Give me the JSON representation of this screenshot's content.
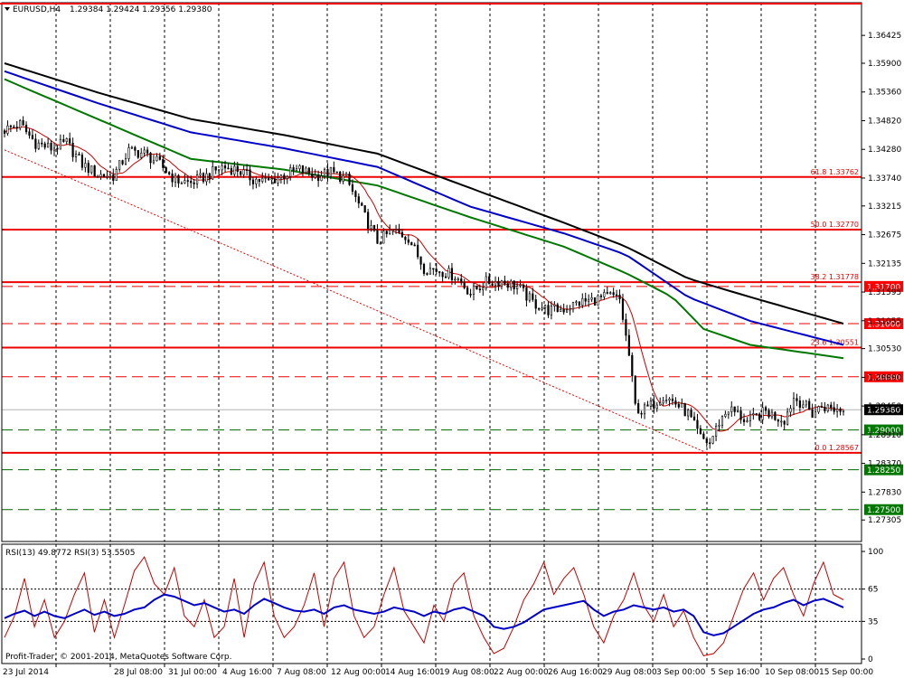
{
  "header": {
    "symbol": "EURUSD,H4",
    "ohlc": "1.29384 1.29424 1.29356 1.29380"
  },
  "colors": {
    "bull": "#000000",
    "bear": "#000000",
    "ma_fast": "#c80000",
    "ma_green": "#007800",
    "ma_blue": "#0000c8",
    "ma_black": "#000000",
    "red_level": "#ee0000",
    "green_level": "#006400",
    "rsi13": "#0000c8",
    "rsi3": "#c80000",
    "label_red_bg": "#ff0000",
    "label_green_bg": "#007800",
    "label_price_bg": "#000000"
  },
  "chart_data": [
    {
      "type": "candlestick",
      "name": "EURUSD,H4",
      "ylim": [
        1.269,
        1.3704
      ],
      "y_ticks": [
        "1.36425",
        "1.35900",
        "1.35360",
        "1.34820",
        "1.34280",
        "1.33740",
        "1.33215",
        "1.32675",
        "1.32135",
        "1.31595",
        "1.31055",
        "1.30530",
        "1.29990",
        "1.29450",
        "1.28910",
        "1.28370",
        "1.27830",
        "1.27305"
      ],
      "x_ticks": [
        "23 Jul 2014",
        "28 Jul 08:00",
        "31 Jul 00:00",
        "4 Aug 16:00",
        "7 Aug 08:00",
        "12 Aug 00:00",
        "14 Aug 16:00",
        "19 Aug 08:00",
        "22 Aug 00:00",
        "26 Aug 16:00",
        "29 Aug 08:00",
        "3 Sep 00:00",
        "5 Sep 16:00",
        "10 Sep 08:00",
        "15 Sep 00:00"
      ],
      "close_anchors": [
        [
          0,
          1.3465
        ],
        [
          5,
          1.3475
        ],
        [
          10,
          1.344
        ],
        [
          15,
          1.343
        ],
        [
          20,
          1.344
        ],
        [
          25,
          1.34
        ],
        [
          30,
          1.338
        ],
        [
          35,
          1.3378
        ],
        [
          40,
          1.3425
        ],
        [
          45,
          1.342
        ],
        [
          50,
          1.34
        ],
        [
          55,
          1.337
        ],
        [
          60,
          1.3365
        ],
        [
          65,
          1.3378
        ],
        [
          70,
          1.3395
        ],
        [
          75,
          1.339
        ],
        [
          80,
          1.3372
        ],
        [
          85,
          1.3368
        ],
        [
          90,
          1.338
        ],
        [
          95,
          1.339
        ],
        [
          100,
          1.3378
        ],
        [
          105,
          1.3385
        ],
        [
          110,
          1.3372
        ],
        [
          115,
          1.3312
        ],
        [
          120,
          1.3255
        ],
        [
          125,
          1.3275
        ],
        [
          130,
          1.3262
        ],
        [
          135,
          1.3205
        ],
        [
          140,
          1.32
        ],
        [
          145,
          1.319
        ],
        [
          150,
          1.3158
        ],
        [
          155,
          1.3178
        ],
        [
          160,
          1.318
        ],
        [
          165,
          1.317
        ],
        [
          170,
          1.314
        ],
        [
          175,
          1.3125
        ],
        [
          180,
          1.3128
        ],
        [
          185,
          1.314
        ],
        [
          190,
          1.3145
        ],
        [
          195,
          1.3152
        ],
        [
          198,
          1.3145
        ],
        [
          201,
          1.304
        ],
        [
          203,
          1.2945
        ],
        [
          205,
          1.2935
        ],
        [
          208,
          1.2945
        ],
        [
          212,
          1.2965
        ],
        [
          216,
          1.295
        ],
        [
          220,
          1.293
        ],
        [
          224,
          1.2885
        ],
        [
          227,
          1.2875
        ],
        [
          230,
          1.2915
        ],
        [
          233,
          1.294
        ],
        [
          236,
          1.293
        ],
        [
          239,
          1.2915
        ],
        [
          242,
          1.2925
        ],
        [
          245,
          1.2935
        ],
        [
          248,
          1.2925
        ],
        [
          251,
          1.292
        ],
        [
          254,
          1.296
        ],
        [
          257,
          1.295
        ],
        [
          260,
          1.293
        ],
        [
          263,
          1.2945
        ],
        [
          266,
          1.294
        ],
        [
          270,
          1.2938
        ]
      ],
      "moving_averages": [
        {
          "color_key": "ma_black",
          "points": [
            [
              0,
              1.359
            ],
            [
              30,
              1.3535
            ],
            [
              60,
              1.3485
            ],
            [
              90,
              1.3455
            ],
            [
              120,
              1.342
            ],
            [
              150,
              1.3355
            ],
            [
              180,
              1.329
            ],
            [
              200,
              1.3245
            ],
            [
              220,
              1.3185
            ],
            [
              240,
              1.315
            ],
            [
              270,
              1.31
            ]
          ]
        },
        {
          "color_key": "ma_blue",
          "points": [
            [
              0,
              1.3575
            ],
            [
              30,
              1.3515
            ],
            [
              60,
              1.346
            ],
            [
              90,
              1.343
            ],
            [
              120,
              1.3395
            ],
            [
              150,
              1.332
            ],
            [
              180,
              1.327
            ],
            [
              200,
              1.323
            ],
            [
              220,
              1.315
            ],
            [
              240,
              1.3105
            ],
            [
              270,
              1.306
            ]
          ]
        },
        {
          "color_key": "ma_green",
          "points": [
            [
              0,
              1.356
            ],
            [
              30,
              1.3485
            ],
            [
              60,
              1.341
            ],
            [
              90,
              1.339
            ],
            [
              120,
              1.336
            ],
            [
              150,
              1.33
            ],
            [
              180,
              1.3245
            ],
            [
              200,
              1.3195
            ],
            [
              215,
              1.315
            ],
            [
              225,
              1.309
            ],
            [
              240,
              1.306
            ],
            [
              270,
              1.3035
            ]
          ]
        }
      ],
      "levels": [
        {
          "price": 1.3376,
          "style": "solid",
          "color_key": "red_level",
          "label": "61.8  1.33762"
        },
        {
          "price": 1.3277,
          "style": "solid",
          "color_key": "red_level",
          "label": "50.0  1.32770"
        },
        {
          "price": 1.3178,
          "style": "solid",
          "color_key": "red_level",
          "label": "38.2  1.31778"
        },
        {
          "price": 1.317,
          "style": "dash",
          "color_key": "red_level",
          "tag": "1.31700"
        },
        {
          "price": 1.31,
          "style": "dash",
          "color_key": "red_level",
          "tag": "1.31000"
        },
        {
          "price": 1.3055,
          "style": "solid",
          "color_key": "red_level",
          "label": "23.6  1.30551"
        },
        {
          "price": 1.3,
          "style": "dash",
          "color_key": "red_level",
          "tag": "1.30000"
        },
        {
          "price": 1.29,
          "style": "dash",
          "color_key": "green_level",
          "tag": "1.29000"
        },
        {
          "price": 1.2857,
          "style": "solid",
          "color_key": "red_level",
          "label": "0.0  1.28567"
        },
        {
          "price": 1.2825,
          "style": "dash",
          "color_key": "green_level",
          "tag": "1.28250"
        },
        {
          "price": 1.275,
          "style": "dash",
          "color_key": "green_level",
          "tag": "1.27500"
        }
      ],
      "trendline": {
        "from": [
          0,
          1.3427
        ],
        "to": [
          226,
          1.2857
        ]
      },
      "current_price": {
        "price": 1.2938,
        "tag": "1.29380"
      }
    },
    {
      "type": "line",
      "title": "RSI(13) 49.8772  RSI(3) 53.5505",
      "ylim": [
        0,
        100
      ],
      "y_ticks": [
        "100",
        "65",
        "35",
        "0"
      ],
      "levels": [
        65,
        35
      ],
      "series": [
        {
          "name": "RSI(13)",
          "color_key": "rsi13",
          "values": [
            38,
            42,
            45,
            40,
            44,
            40,
            38,
            42,
            46,
            41,
            44,
            40,
            42,
            46,
            48,
            55,
            60,
            58,
            54,
            50,
            52,
            48,
            44,
            46,
            42,
            50,
            56,
            52,
            48,
            45,
            44,
            46,
            42,
            48,
            50,
            46,
            44,
            42,
            44,
            48,
            46,
            44,
            40,
            44,
            42,
            46,
            48,
            44,
            40,
            30,
            28,
            30,
            34,
            40,
            46,
            48,
            50,
            52,
            54,
            46,
            40,
            44,
            46,
            50,
            48,
            46,
            48,
            44,
            46,
            40,
            25,
            22,
            24,
            30,
            36,
            42,
            46,
            48,
            52,
            55,
            50,
            54,
            56,
            52,
            48
          ]
        },
        {
          "name": "RSI(3)",
          "color_key": "rsi3",
          "values": [
            20,
            40,
            75,
            30,
            55,
            20,
            35,
            60,
            80,
            25,
            55,
            20,
            50,
            82,
            95,
            70,
            60,
            85,
            40,
            30,
            55,
            20,
            30,
            75,
            20,
            70,
            90,
            40,
            20,
            30,
            50,
            80,
            30,
            75,
            90,
            40,
            20,
            30,
            60,
            85,
            45,
            30,
            15,
            50,
            35,
            70,
            80,
            40,
            20,
            5,
            10,
            30,
            55,
            70,
            90,
            60,
            75,
            85,
            60,
            30,
            15,
            40,
            55,
            80,
            50,
            35,
            60,
            30,
            45,
            20,
            3,
            5,
            15,
            40,
            65,
            80,
            55,
            75,
            85,
            60,
            40,
            70,
            90,
            60,
            55
          ]
        }
      ]
    }
  ],
  "footer": {
    "copyright": "Profit-Trader, © 2001-2014, MetaQuotes Software Corp."
  }
}
